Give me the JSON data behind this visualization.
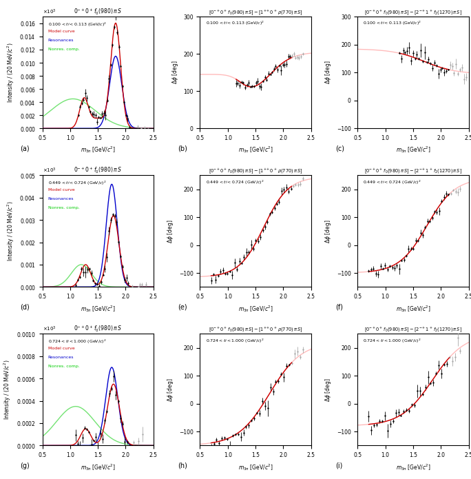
{
  "figure_size": [
    6.84,
    6.95
  ],
  "dpi": 100,
  "background": "#ffffff",
  "colors": {
    "model": "#cc0000",
    "resonances": "#0000cc",
    "nonres": "#00cc00",
    "data_black": "#000000",
    "data_gray": "#aaaaaa",
    "model_light": "#ffbbbb"
  },
  "panel_labels": [
    "(a)",
    "(b)",
    "(c)",
    "(d)",
    "(e)",
    "(f)",
    "(g)",
    "(h)",
    "(i)"
  ]
}
